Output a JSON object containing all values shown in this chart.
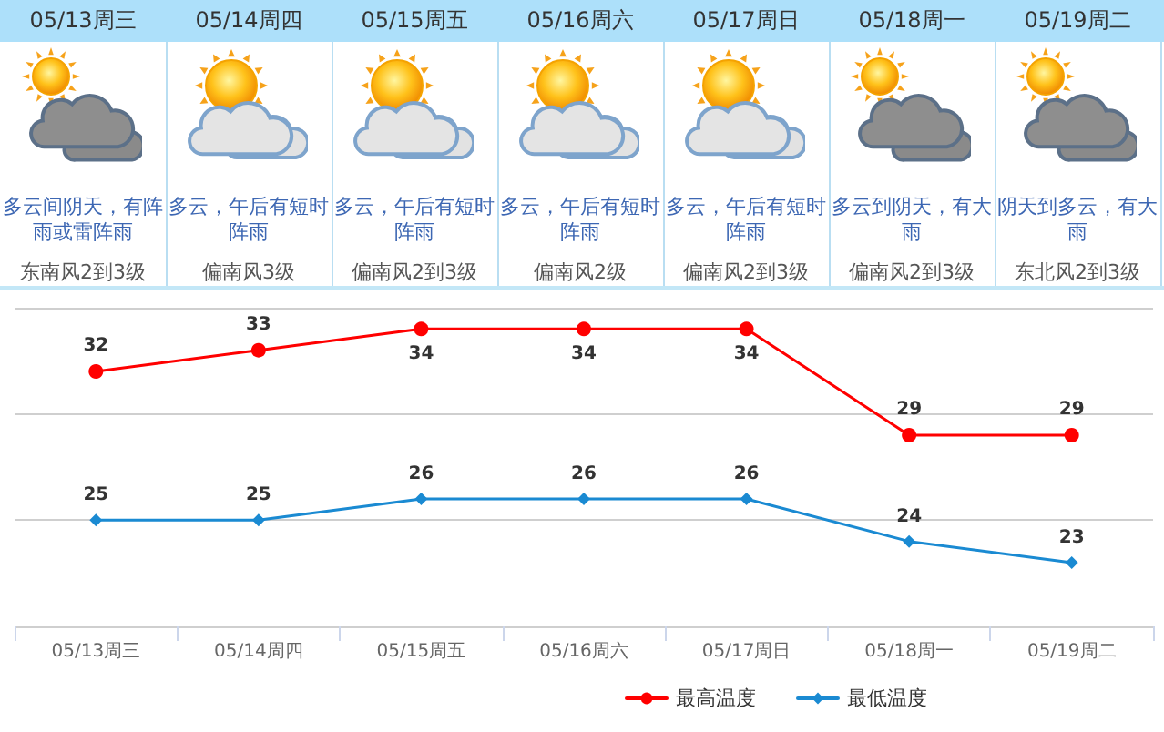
{
  "chart_data": [
    {
      "type": "other",
      "categories": [
        "05/13周三",
        "05/14周四",
        "05/15周五",
        "05/16周六",
        "05/17周日",
        "05/18周一",
        "05/19周二"
      ],
      "annotations": [
        "多云间阴天，有阵雨或雷阵雨",
        "多云，午后有短时阵雨",
        "多云，午后有短时阵雨",
        "多云，午后有短时阵雨",
        "多云，午后有短时阵雨",
        "多云到阴天，有大雨",
        "阴天到多云，有大雨",
        "东南风2到3级",
        "偏南风3级",
        "偏南风2到3级",
        "偏南风2级",
        "偏南风2到3级",
        "偏南风2到3级",
        "东北风2到3级"
      ]
    },
    {
      "type": "line",
      "categories": [
        "05/13周三",
        "05/14周四",
        "05/15周五",
        "05/16周六",
        "05/17周日",
        "05/18周一",
        "05/19周二"
      ],
      "series": [
        {
          "name": "最高温度",
          "color": "#ff0000",
          "marker": "circle",
          "values": [
            32,
            33,
            34,
            34,
            34,
            29,
            29
          ]
        },
        {
          "name": "最低温度",
          "color": "#1a8ad2",
          "marker": "diamond",
          "values": [
            25,
            25,
            26,
            26,
            26,
            24,
            23
          ]
        }
      ],
      "ylim": [
        20,
        35
      ],
      "yticks": [
        {
          "value": 20,
          "label": null
        },
        {
          "value": 25,
          "label": null
        },
        {
          "value": 30,
          "label": null
        },
        {
          "value": 35,
          "label": null
        }
      ],
      "tick_labels": "x",
      "grid": "y",
      "legend": "bottom",
      "data_labels": true,
      "line_style": "solid"
    }
  ]
}
